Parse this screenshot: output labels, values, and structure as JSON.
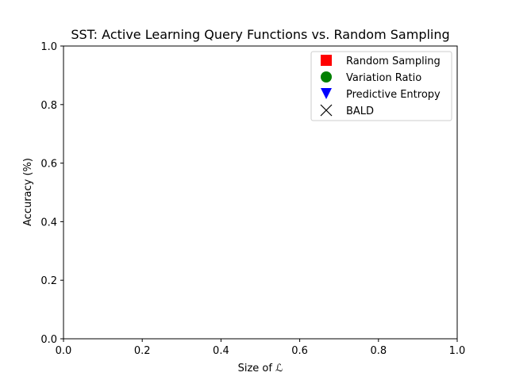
{
  "chart_data": {
    "type": "scatter",
    "title": "SST: Active Learning Query Functions vs. Random Sampling",
    "xlabel": "Size of ℒ",
    "ylabel": "Accuracy (%)",
    "xlim": [
      0.0,
      1.0
    ],
    "ylim": [
      0.0,
      1.0
    ],
    "xticks": [
      "0.0",
      "0.2",
      "0.4",
      "0.6",
      "0.8",
      "1.0"
    ],
    "yticks": [
      "0.0",
      "0.2",
      "0.4",
      "0.6",
      "0.8",
      "1.0"
    ],
    "grid": false,
    "legend_position": "upper-right",
    "series": [
      {
        "name": "Random Sampling",
        "marker": "square",
        "color": "#ff0000",
        "x": [],
        "y": []
      },
      {
        "name": "Variation Ratio",
        "marker": "circle",
        "color": "#008000",
        "x": [],
        "y": []
      },
      {
        "name": "Predictive Entropy",
        "marker": "triangle-down",
        "color": "#0000ff",
        "x": [],
        "y": []
      },
      {
        "name": "BALD",
        "marker": "x",
        "color": "#000000",
        "x": [],
        "y": []
      }
    ]
  }
}
